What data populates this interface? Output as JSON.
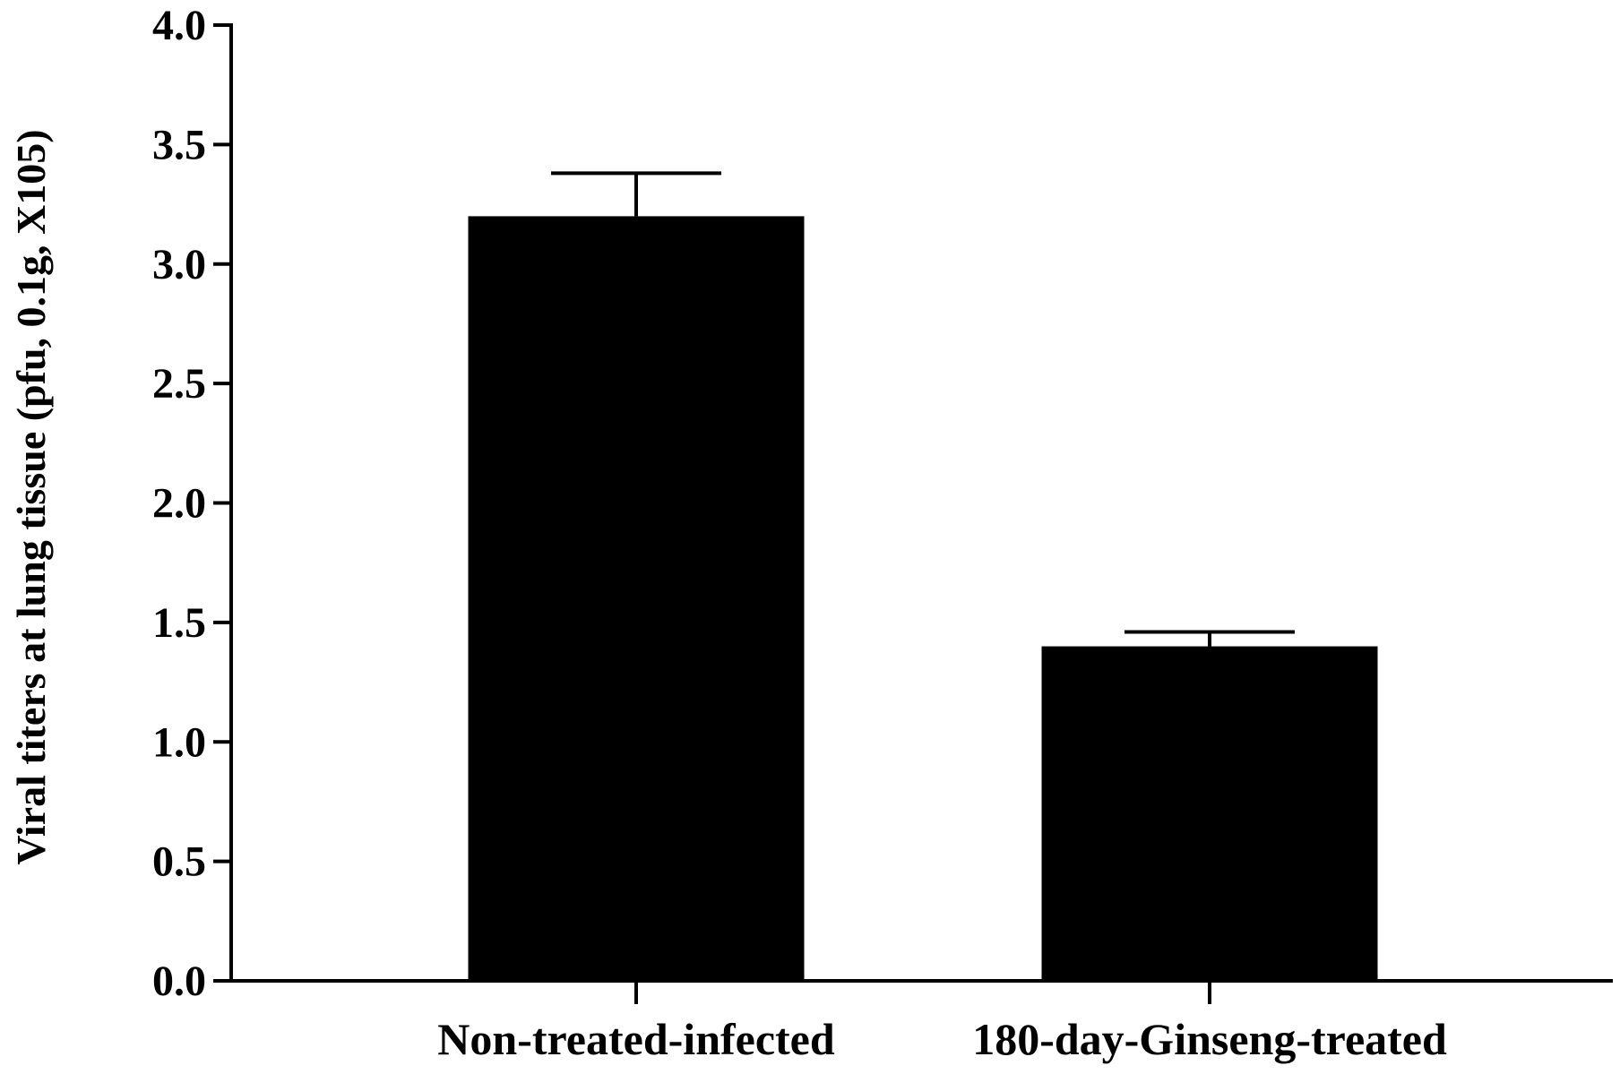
{
  "chart_data": {
    "type": "bar",
    "title": "",
    "xlabel": "",
    "ylabel": "Viral titers at lung tissue  (pfu, 0.1g, X105)",
    "ylim": [
      0,
      4.0
    ],
    "yticks": [
      "0.0",
      "0.5",
      "1.0",
      "1.5",
      "2.0",
      "2.5",
      "3.0",
      "3.5",
      "4.0"
    ],
    "categories": [
      "Non-treated-infected",
      "180-day-Ginseng-treated"
    ],
    "values": [
      3.2,
      1.4
    ],
    "error_upper": [
      0.18,
      0.06
    ],
    "grid": false,
    "legend": "none",
    "bar_color": "#000000",
    "axis_color": "#000000"
  }
}
